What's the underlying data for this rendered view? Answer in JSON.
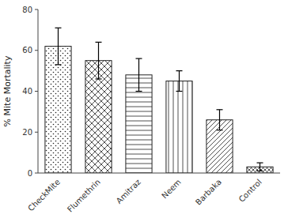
{
  "chart_data": {
    "type": "bar",
    "categories": [
      "CheckMite",
      "Flumethrin",
      "Amitraz",
      "Neem",
      "Barbaka",
      "Control"
    ],
    "values": [
      62,
      55,
      48,
      45,
      26,
      3
    ],
    "errors": [
      9,
      9,
      8,
      5,
      5,
      2
    ],
    "ylabel": "% Mite Mortality",
    "color": "#ffffff",
    "ylim": [
      0,
      80
    ],
    "yticks": [
      0,
      20,
      40,
      60,
      80
    ],
    "grid": false
  }
}
